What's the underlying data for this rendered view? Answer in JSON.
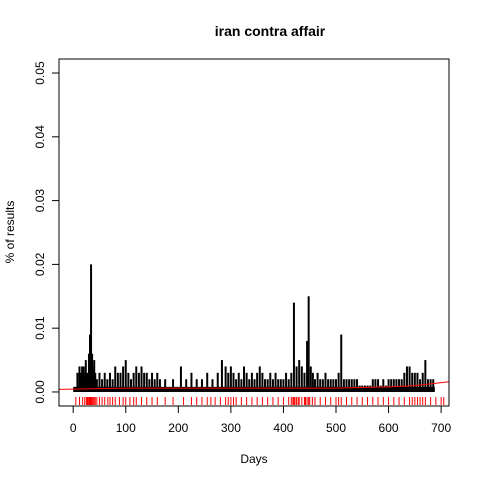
{
  "chart_data": {
    "type": "bar",
    "title": "iran contra affair",
    "xlabel": "Days",
    "ylabel": "% of results",
    "xlim": [
      -27,
      715
    ],
    "ylim": [
      -0.0022,
      0.0522
    ],
    "xticks": [
      0,
      100,
      200,
      300,
      400,
      500,
      600,
      700
    ],
    "yticks": [
      0.0,
      0.01,
      0.02,
      0.03,
      0.04,
      0.05
    ],
    "ytick_labels": [
      "0.00",
      "0.01",
      "0.02",
      "0.03",
      "0.04",
      "0.05"
    ],
    "bar_color": "#000000",
    "trend_color": "#ff0000",
    "rug_color": "#ff0000",
    "spikes": [
      {
        "x": 8,
        "y": 0.003
      },
      {
        "x": 12,
        "y": 0.004
      },
      {
        "x": 14,
        "y": 0.003
      },
      {
        "x": 17,
        "y": 0.004
      },
      {
        "x": 20,
        "y": 0.004
      },
      {
        "x": 22,
        "y": 0.003
      },
      {
        "x": 24,
        "y": 0.005
      },
      {
        "x": 27,
        "y": 0.003
      },
      {
        "x": 30,
        "y": 0.006
      },
      {
        "x": 32,
        "y": 0.009
      },
      {
        "x": 34,
        "y": 0.02
      },
      {
        "x": 36,
        "y": 0.006
      },
      {
        "x": 38,
        "y": 0.004
      },
      {
        "x": 40,
        "y": 0.005
      },
      {
        "x": 42,
        "y": 0.003
      },
      {
        "x": 45,
        "y": 0.002
      },
      {
        "x": 50,
        "y": 0.003
      },
      {
        "x": 55,
        "y": 0.002
      },
      {
        "x": 60,
        "y": 0.003
      },
      {
        "x": 65,
        "y": 0.002
      },
      {
        "x": 70,
        "y": 0.003
      },
      {
        "x": 75,
        "y": 0.002
      },
      {
        "x": 80,
        "y": 0.004
      },
      {
        "x": 85,
        "y": 0.003
      },
      {
        "x": 90,
        "y": 0.003
      },
      {
        "x": 95,
        "y": 0.004
      },
      {
        "x": 100,
        "y": 0.005
      },
      {
        "x": 105,
        "y": 0.003
      },
      {
        "x": 110,
        "y": 0.002
      },
      {
        "x": 115,
        "y": 0.003
      },
      {
        "x": 120,
        "y": 0.004
      },
      {
        "x": 125,
        "y": 0.003
      },
      {
        "x": 130,
        "y": 0.004
      },
      {
        "x": 135,
        "y": 0.003
      },
      {
        "x": 140,
        "y": 0.003
      },
      {
        "x": 145,
        "y": 0.002
      },
      {
        "x": 150,
        "y": 0.003
      },
      {
        "x": 155,
        "y": 0.002
      },
      {
        "x": 160,
        "y": 0.003
      },
      {
        "x": 165,
        "y": 0.002
      },
      {
        "x": 175,
        "y": 0.002
      },
      {
        "x": 190,
        "y": 0.002
      },
      {
        "x": 205,
        "y": 0.004
      },
      {
        "x": 215,
        "y": 0.002
      },
      {
        "x": 225,
        "y": 0.003
      },
      {
        "x": 235,
        "y": 0.002
      },
      {
        "x": 245,
        "y": 0.002
      },
      {
        "x": 255,
        "y": 0.003
      },
      {
        "x": 265,
        "y": 0.002
      },
      {
        "x": 275,
        "y": 0.003
      },
      {
        "x": 283,
        "y": 0.005
      },
      {
        "x": 290,
        "y": 0.004
      },
      {
        "x": 295,
        "y": 0.003
      },
      {
        "x": 300,
        "y": 0.004
      },
      {
        "x": 305,
        "y": 0.003
      },
      {
        "x": 310,
        "y": 0.002
      },
      {
        "x": 315,
        "y": 0.003
      },
      {
        "x": 320,
        "y": 0.002
      },
      {
        "x": 325,
        "y": 0.004
      },
      {
        "x": 330,
        "y": 0.003
      },
      {
        "x": 335,
        "y": 0.002
      },
      {
        "x": 340,
        "y": 0.003
      },
      {
        "x": 345,
        "y": 0.002
      },
      {
        "x": 350,
        "y": 0.003
      },
      {
        "x": 355,
        "y": 0.004
      },
      {
        "x": 360,
        "y": 0.003
      },
      {
        "x": 365,
        "y": 0.002
      },
      {
        "x": 370,
        "y": 0.002
      },
      {
        "x": 375,
        "y": 0.003
      },
      {
        "x": 380,
        "y": 0.002
      },
      {
        "x": 385,
        "y": 0.003
      },
      {
        "x": 390,
        "y": 0.002
      },
      {
        "x": 395,
        "y": 0.002
      },
      {
        "x": 400,
        "y": 0.002
      },
      {
        "x": 405,
        "y": 0.003
      },
      {
        "x": 410,
        "y": 0.002
      },
      {
        "x": 415,
        "y": 0.003
      },
      {
        "x": 420,
        "y": 0.014
      },
      {
        "x": 425,
        "y": 0.004
      },
      {
        "x": 430,
        "y": 0.005
      },
      {
        "x": 435,
        "y": 0.004
      },
      {
        "x": 440,
        "y": 0.003
      },
      {
        "x": 445,
        "y": 0.008
      },
      {
        "x": 448,
        "y": 0.015
      },
      {
        "x": 452,
        "y": 0.004
      },
      {
        "x": 456,
        "y": 0.003
      },
      {
        "x": 460,
        "y": 0.002
      },
      {
        "x": 465,
        "y": 0.003
      },
      {
        "x": 470,
        "y": 0.002
      },
      {
        "x": 475,
        "y": 0.002
      },
      {
        "x": 480,
        "y": 0.003
      },
      {
        "x": 485,
        "y": 0.002
      },
      {
        "x": 490,
        "y": 0.002
      },
      {
        "x": 495,
        "y": 0.002
      },
      {
        "x": 500,
        "y": 0.002
      },
      {
        "x": 505,
        "y": 0.003
      },
      {
        "x": 510,
        "y": 0.009
      },
      {
        "x": 515,
        "y": 0.002
      },
      {
        "x": 520,
        "y": 0.002
      },
      {
        "x": 525,
        "y": 0.002
      },
      {
        "x": 530,
        "y": 0.002
      },
      {
        "x": 535,
        "y": 0.002
      },
      {
        "x": 540,
        "y": 0.002
      },
      {
        "x": 545,
        "y": 0.001
      },
      {
        "x": 550,
        "y": 0.001
      },
      {
        "x": 555,
        "y": 0.001
      },
      {
        "x": 560,
        "y": 0.001
      },
      {
        "x": 565,
        "y": 0.001
      },
      {
        "x": 570,
        "y": 0.002
      },
      {
        "x": 575,
        "y": 0.002
      },
      {
        "x": 580,
        "y": 0.002
      },
      {
        "x": 585,
        "y": 0.001
      },
      {
        "x": 590,
        "y": 0.002
      },
      {
        "x": 595,
        "y": 0.001
      },
      {
        "x": 600,
        "y": 0.002
      },
      {
        "x": 605,
        "y": 0.002
      },
      {
        "x": 610,
        "y": 0.002
      },
      {
        "x": 615,
        "y": 0.002
      },
      {
        "x": 620,
        "y": 0.002
      },
      {
        "x": 625,
        "y": 0.002
      },
      {
        "x": 630,
        "y": 0.003
      },
      {
        "x": 635,
        "y": 0.004
      },
      {
        "x": 640,
        "y": 0.004
      },
      {
        "x": 645,
        "y": 0.003
      },
      {
        "x": 650,
        "y": 0.003
      },
      {
        "x": 655,
        "y": 0.003
      },
      {
        "x": 660,
        "y": 0.002
      },
      {
        "x": 665,
        "y": 0.003
      },
      {
        "x": 670,
        "y": 0.005
      },
      {
        "x": 675,
        "y": 0.002
      },
      {
        "x": 680,
        "y": 0.002
      },
      {
        "x": 685,
        "y": 0.002
      }
    ],
    "baseline_fill": {
      "x_start": 0,
      "x_end": 688,
      "y": 0.0008
    },
    "trend_line": [
      {
        "x": -27,
        "y": 0.0004
      },
      {
        "x": 100,
        "y": 0.0006
      },
      {
        "x": 200,
        "y": 0.0006
      },
      {
        "x": 300,
        "y": 0.0006
      },
      {
        "x": 400,
        "y": 0.0006
      },
      {
        "x": 500,
        "y": 0.0006
      },
      {
        "x": 600,
        "y": 0.0008
      },
      {
        "x": 650,
        "y": 0.001
      },
      {
        "x": 715,
        "y": 0.0016
      }
    ],
    "rug_x": [
      5,
      12,
      18,
      22,
      25,
      27,
      28,
      30,
      31,
      32,
      33,
      34,
      35,
      36,
      38,
      40,
      42,
      45,
      50,
      55,
      60,
      66,
      70,
      75,
      80,
      88,
      95,
      100,
      108,
      115,
      120,
      130,
      140,
      150,
      160,
      175,
      190,
      210,
      225,
      235,
      245,
      255,
      262,
      270,
      280,
      290,
      295,
      300,
      305,
      310,
      320,
      330,
      340,
      350,
      360,
      370,
      380,
      390,
      400,
      410,
      415,
      418,
      420,
      422,
      425,
      428,
      430,
      435,
      440,
      442,
      445,
      448,
      450,
      455,
      460,
      470,
      480,
      490,
      500,
      505,
      510,
      520,
      530,
      540,
      550,
      560,
      570,
      580,
      590,
      600,
      610,
      620,
      630,
      640,
      645,
      650,
      655,
      660,
      665,
      670,
      680,
      690,
      700,
      705
    ]
  }
}
